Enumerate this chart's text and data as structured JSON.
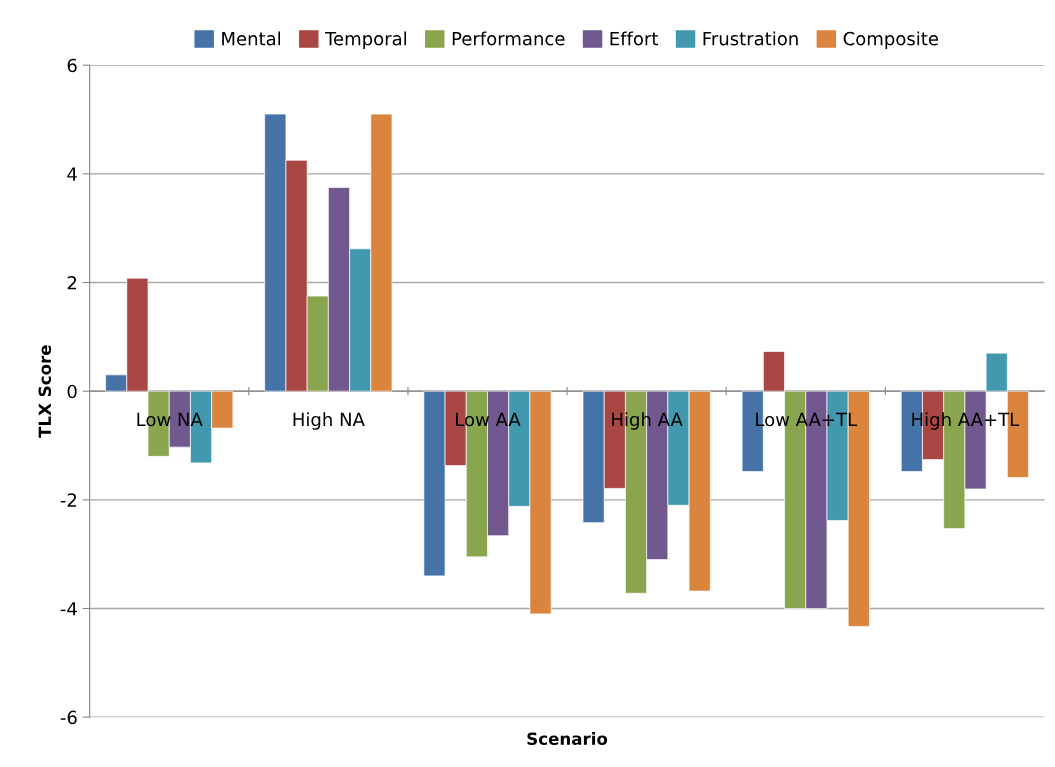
{
  "chart_data": {
    "type": "bar",
    "xlabel": "Scenario",
    "ylabel": "TLX Score",
    "categories": [
      "Low NA",
      "High NA",
      "Low AA",
      "High AA",
      "Low AA+TL",
      "High AA+TL"
    ],
    "series": [
      {
        "name": "Mental",
        "color": "#4572a7",
        "values": [
          0.3,
          5.1,
          -3.4,
          -2.42,
          -1.48,
          -1.48
        ]
      },
      {
        "name": "Temporal",
        "color": "#aa4643",
        "values": [
          2.08,
          4.25,
          -1.37,
          -1.79,
          0.73,
          -1.26
        ]
      },
      {
        "name": "Performance",
        "color": "#89a54e",
        "values": [
          -1.2,
          1.75,
          -3.05,
          -3.72,
          -4.0,
          -2.53
        ]
      },
      {
        "name": "Effort",
        "color": "#71588f",
        "values": [
          -1.03,
          3.75,
          -2.66,
          -3.1,
          -4.0,
          -1.8
        ]
      },
      {
        "name": "Frustration",
        "color": "#4198af",
        "values": [
          -1.32,
          2.62,
          -2.12,
          -2.1,
          -2.38,
          0.7
        ]
      },
      {
        "name": "Composite",
        "color": "#db843d",
        "values": [
          -0.68,
          5.1,
          -4.1,
          -3.68,
          -4.33,
          -1.59
        ]
      }
    ],
    "ylim": [
      -6,
      6
    ],
    "yticks": [
      -6,
      -4,
      -2,
      0,
      2,
      4,
      6
    ],
    "grid": "y",
    "legend": "top"
  }
}
